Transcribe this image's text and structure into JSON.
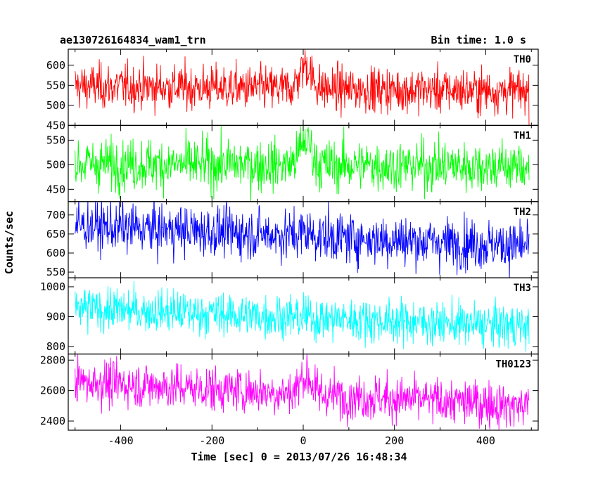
{
  "header": {
    "title": "ae130726164834_wam1_trn",
    "bin_time": "Bin time: 1.0 s"
  },
  "chart_data": {
    "type": "line",
    "xlabel": "Time [sec] 0 = 2013/07/26 16:48:34",
    "ylabel": "Counts/sec",
    "xlim": [
      -515,
      515
    ],
    "x_ticks": [
      -400,
      -200,
      0,
      200,
      400
    ],
    "x_range": [
      -500,
      495
    ],
    "x_step": 1,
    "series": [
      {
        "name": "TH0",
        "color": "#ff0000",
        "ylim": [
          450,
          640
        ],
        "y_ticks": [
          450,
          500,
          550,
          600
        ],
        "mean_at_start": 548,
        "mean_at_end": 535,
        "noise": 28,
        "peak_at": 5,
        "peak_height": 60,
        "peak_width": 18
      },
      {
        "name": "TH1",
        "color": "#00ff00",
        "ylim": [
          425,
          580
        ],
        "y_ticks": [
          450,
          500,
          550
        ],
        "mean_at_start": 502,
        "mean_at_end": 497,
        "noise": 26,
        "peak_at": 5,
        "peak_height": 50,
        "peak_width": 18
      },
      {
        "name": "TH2",
        "color": "#0000ff",
        "ylim": [
          535,
          735
        ],
        "y_ticks": [
          550,
          600,
          650,
          700
        ],
        "mean_at_start": 672,
        "mean_at_end": 618,
        "noise": 33,
        "peak_at": 5,
        "peak_height": 10,
        "peak_width": 18
      },
      {
        "name": "TH3",
        "color": "#00ffff",
        "ylim": [
          775,
          1030
        ],
        "y_ticks": [
          800,
          900,
          1000
        ],
        "mean_at_start": 928,
        "mean_at_end": 866,
        "noise": 36,
        "peak_at": 5,
        "peak_height": 0,
        "peak_width": 18
      },
      {
        "name": "TH0123",
        "color": "#ff00ff",
        "ylim": [
          2340,
          2840
        ],
        "y_ticks": [
          2400,
          2600,
          2800
        ],
        "mean_at_start": 2660,
        "mean_at_end": 2500,
        "noise": 75,
        "peak_at": 5,
        "peak_height": 120,
        "peak_width": 18
      }
    ]
  }
}
